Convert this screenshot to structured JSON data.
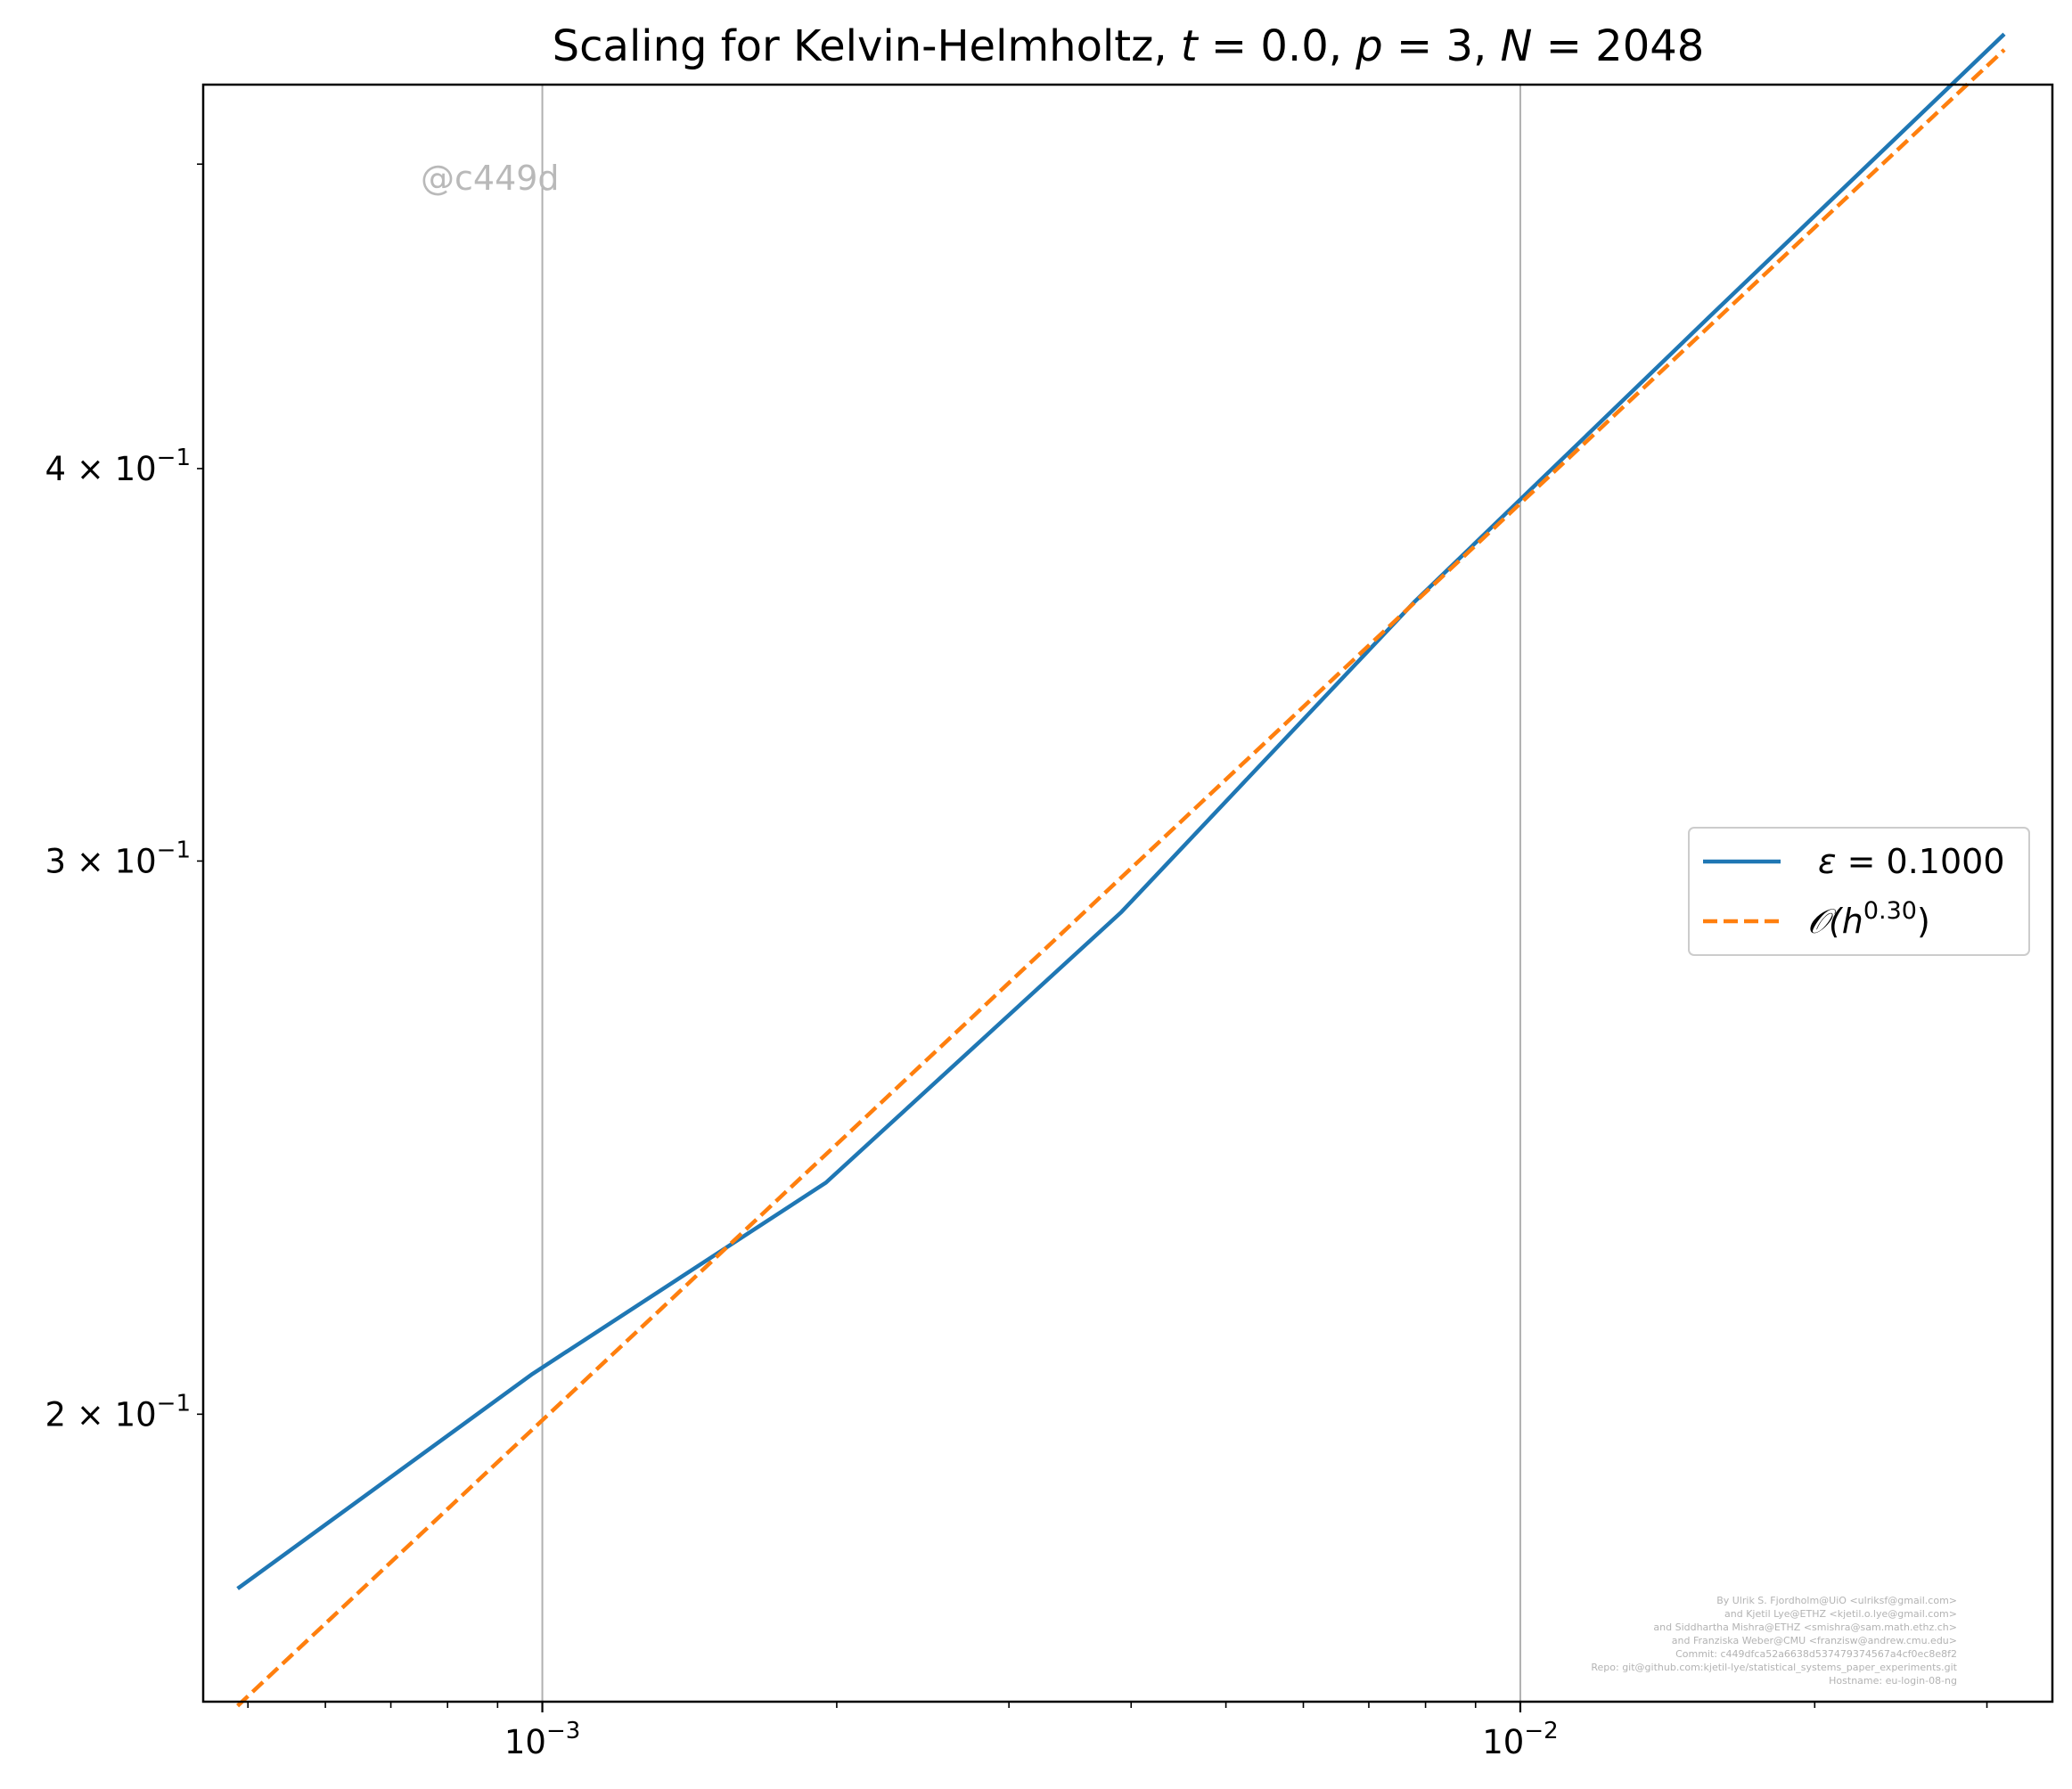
{
  "chart_data": {
    "type": "line",
    "title": {
      "prefix": "Scaling for Kelvin-Helmholtz, ",
      "t_var": "t",
      "t_rest": " = 0.0, ",
      "p_var": "p",
      "p_rest": " = 3, ",
      "n_var": "N",
      "n_rest": " = 2048"
    },
    "xscale": "log",
    "yscale": "log",
    "xlim": [
      0.00045,
      0.035
    ],
    "ylim": [
      0.162,
      0.53
    ],
    "grid": "x-major-only",
    "x_ticks": [
      {
        "value": 0.001,
        "base": "10",
        "exp": "−3"
      },
      {
        "value": 0.01,
        "base": "10",
        "exp": "−2"
      }
    ],
    "y_ticks": [
      {
        "value": 0.2,
        "mant": "2 × 10",
        "exp": "−1"
      },
      {
        "value": 0.3,
        "mant": "3 × 10",
        "exp": "−1"
      },
      {
        "value": 0.4,
        "mant": "4 × 10",
        "exp": "−1"
      }
    ],
    "y_minor_ticks": [
      0.5
    ],
    "series": [
      {
        "name": "ε = 0.1000",
        "legend_var": "ε",
        "legend_rest": " = 0.1000",
        "color": "#1f77b4",
        "style": "solid",
        "x": [
          0.000488,
          0.000977,
          0.00195,
          0.00391,
          0.00781,
          0.0156,
          0.03125
        ],
        "y": [
          0.176,
          0.206,
          0.237,
          0.289,
          0.363,
          0.447,
          0.55
        ]
      },
      {
        "name": "𝒪(h^0.30)",
        "legend_main": "𝒪(h",
        "legend_sup": "0.30",
        "legend_close": ")",
        "color": "#ff7f0e",
        "style": "dashed",
        "x": [
          0.000488,
          0.03125
        ],
        "y": [
          0.1615,
          0.5437
        ]
      }
    ],
    "legend": {
      "position": "center-right"
    },
    "annotations": {
      "watermark": "@c449d",
      "credits": [
        "By Ulrik S. Fjordholm@UiO <ulriksf@gmail.com>",
        "and Kjetil Lye@ETHZ <kjetil.o.lye@gmail.com>",
        "and Siddhartha Mishra@ETHZ <smishra@sam.math.ethz.ch>",
        "and Franziska Weber@CMU <franzisw@andrew.cmu.edu>",
        "Commit: c449dfca52a6638d537479374567a4cf0ec8e8f2",
        "Repo: git@github.com:kjetil-lye/statistical_systems_paper_experiments.git",
        "Hostname: eu-login-08-ng"
      ]
    }
  }
}
